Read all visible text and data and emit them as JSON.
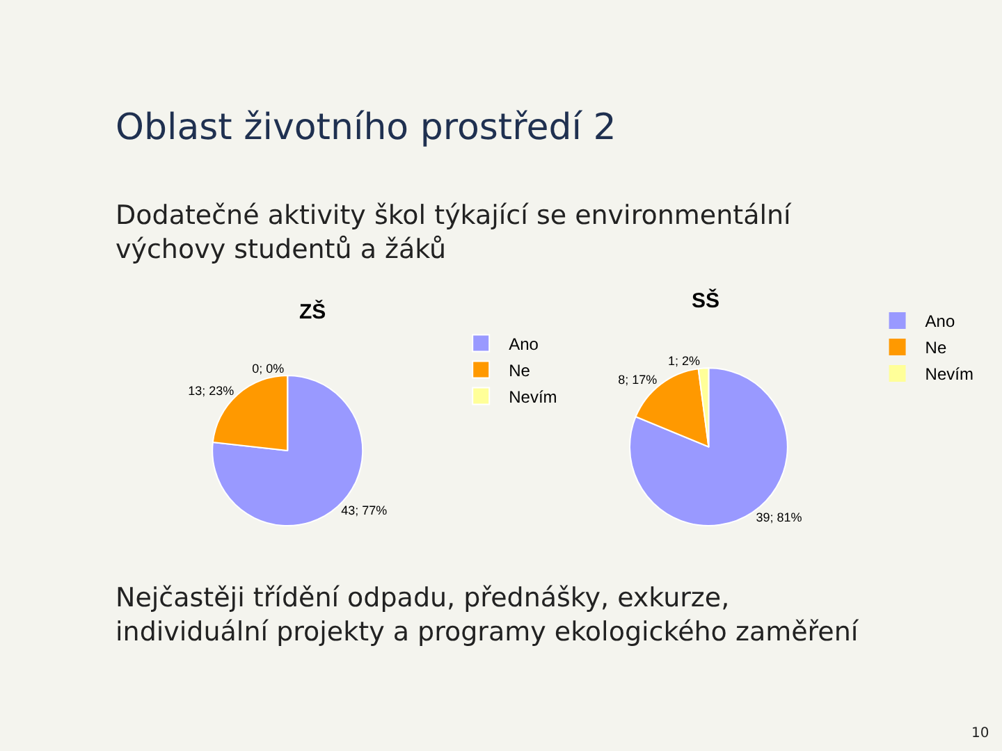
{
  "chart_data": [
    {
      "type": "other",
      "title": "Oblast životního prostředí 2",
      "subtitle": "Dodatečné aktivity škol týkající se environmentální výchovy studentů a žáků",
      "annotations": [
        "Nejčastěji třídění odpadu, přednášky, exkurze, individuální projekty a programy ekologického zaměření",
        "10"
      ]
    },
    {
      "type": "pie",
      "title": "ZŠ",
      "categories": [
        "Ano",
        "Ne",
        "Nevím"
      ],
      "values": [
        43,
        13,
        0
      ],
      "colors": [
        "#9999ff",
        "#ff9900",
        "#ffff99"
      ],
      "value_labels": [
        "43; 77%",
        "13; 23%",
        "0; 0%"
      ],
      "legend": "right"
    },
    {
      "type": "pie",
      "title": "SŠ",
      "categories": [
        "Ano",
        "Ne",
        "Nevím"
      ],
      "values": [
        39,
        8,
        1
      ],
      "colors": [
        "#9999ff",
        "#ff9900",
        "#ffff99"
      ],
      "value_labels": [
        "39; 81%",
        "8; 17%",
        "1; 2%"
      ],
      "legend": "right"
    }
  ]
}
